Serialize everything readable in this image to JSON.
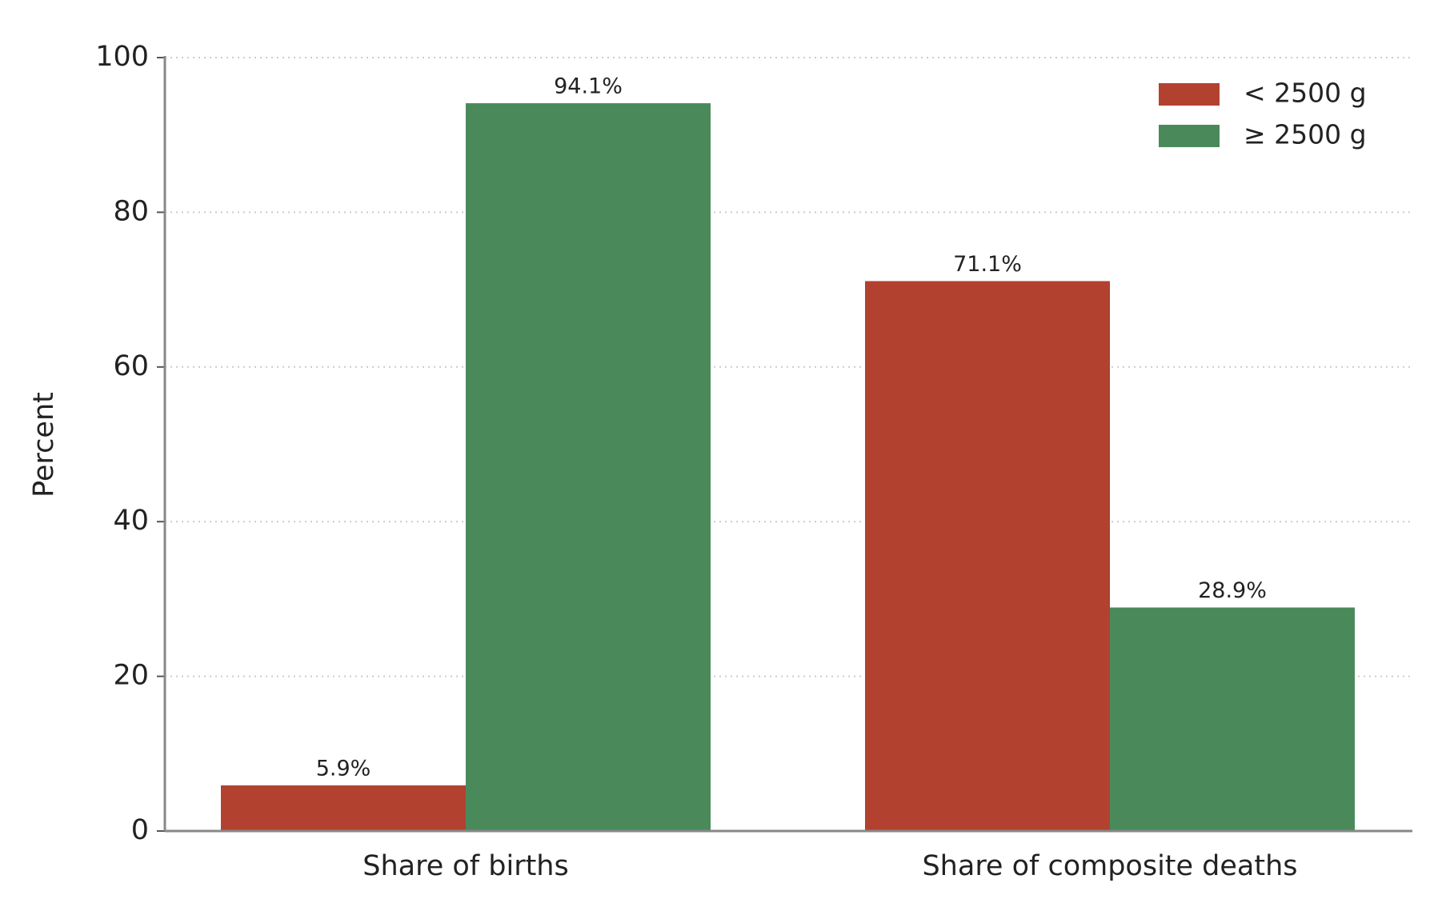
{
  "chart_data": {
    "type": "bar",
    "y_label": "Percent",
    "categories": [
      "Share of births",
      "Share of composite deaths"
    ],
    "series": [
      {
        "name": "< 2500 g",
        "color": "#b34130",
        "values": [
          5.9,
          71.1
        ],
        "value_labels": [
          "5.9%",
          "71.1%"
        ]
      },
      {
        "name": "≥ 2500 g",
        "color": "#4a8a5a",
        "values": [
          94.1,
          28.9
        ],
        "value_labels": [
          "94.1%",
          "28.9%"
        ]
      }
    ],
    "ylim": [
      0,
      100
    ],
    "yticks": [
      0,
      20,
      40,
      60,
      80,
      100
    ],
    "grid": true,
    "legend": "upper right"
  }
}
